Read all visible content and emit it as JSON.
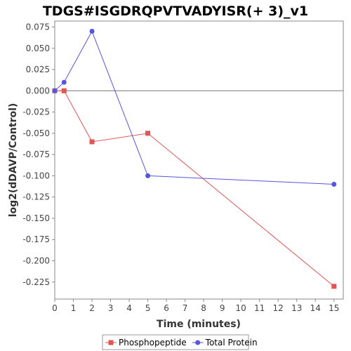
{
  "chart_data": {
    "type": "line",
    "title": "TDGS#ISGDRQPVTVADYISR(+ 3)_v1",
    "xlabel": "Time (minutes)",
    "ylabel": "log2(dDAVP/Control)",
    "xlim": [
      0,
      15.5
    ],
    "ylim": [
      -0.245,
      0.082
    ],
    "xticks": [
      0,
      1,
      2,
      3,
      4,
      5,
      6,
      7,
      8,
      9,
      10,
      11,
      12,
      13,
      14,
      15
    ],
    "xtick_labels": [
      "0",
      "1",
      "2",
      "3",
      "4",
      "5",
      "6",
      "7",
      "8",
      "9",
      "10",
      "11",
      "12",
      "13",
      "14",
      "15"
    ],
    "yticks": [
      0.075,
      0.05,
      0.025,
      0.0,
      -0.025,
      -0.05,
      -0.075,
      -0.1,
      -0.125,
      -0.15,
      -0.175,
      -0.2,
      -0.225
    ],
    "ytick_labels": [
      "0.075",
      "0.050",
      "0.025",
      "0.000",
      "-0.025",
      "-0.050",
      "-0.075",
      "-0.100",
      "-0.125",
      "-0.150",
      "-0.175",
      "-0.200",
      "-0.225"
    ],
    "zero_line": true,
    "grid": false,
    "legend_position": "bottom",
    "series": [
      {
        "name": "Phosphopeptide",
        "color": "#e05555",
        "marker": "square",
        "x": [
          0,
          0.5,
          2,
          5,
          15
        ],
        "y": [
          0.0,
          0.0,
          -0.06,
          -0.05,
          -0.23
        ]
      },
      {
        "name": "Total Protein",
        "color": "#5555e0",
        "marker": "circle",
        "x": [
          0,
          0.5,
          2,
          5,
          15
        ],
        "y": [
          0.0,
          0.01,
          0.07,
          -0.1,
          -0.11
        ]
      }
    ]
  }
}
